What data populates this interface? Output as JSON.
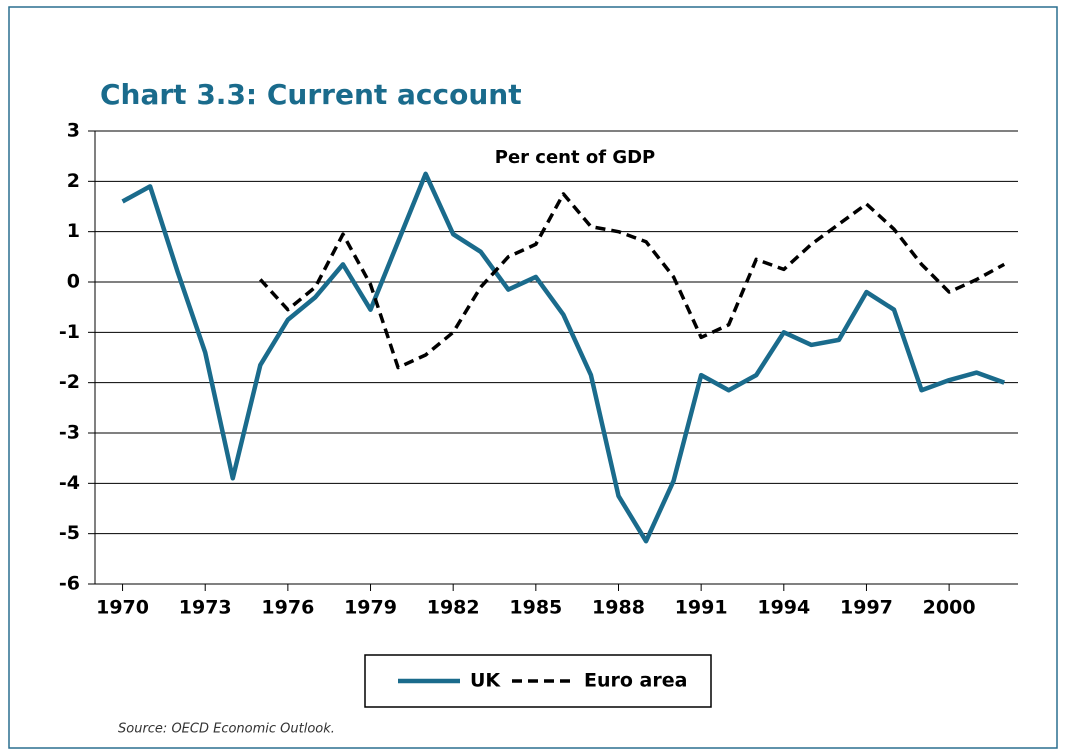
{
  "chart_data": {
    "type": "line",
    "title": "Chart 3.3: Current account",
    "subtitle": "Per cent of GDP",
    "source": "Source: OECD Economic Outlook.",
    "x": [
      1970,
      1971,
      1972,
      1973,
      1974,
      1975,
      1976,
      1977,
      1978,
      1979,
      1980,
      1981,
      1982,
      1983,
      1984,
      1985,
      1986,
      1987,
      1988,
      1989,
      1990,
      1991,
      1992,
      1993,
      1994,
      1995,
      1996,
      1997,
      1998,
      1999,
      2000,
      2001,
      2002
    ],
    "series": [
      {
        "name": "UK",
        "color": "#1a6b8c",
        "style": "solid",
        "values": [
          1.6,
          1.9,
          0.2,
          -1.4,
          -3.9,
          -1.65,
          -0.75,
          -0.3,
          0.35,
          -0.55,
          0.8,
          2.15,
          0.95,
          0.6,
          -0.15,
          0.1,
          -0.65,
          -1.85,
          -4.25,
          -5.15,
          -3.95,
          -1.85,
          -2.15,
          -1.85,
          -1.0,
          -1.25,
          -1.15,
          -0.2,
          -0.55,
          -2.15,
          -1.95,
          -1.8,
          -2.0
        ]
      },
      {
        "name": "Euro area",
        "color": "#000000",
        "style": "dashed",
        "values": [
          null,
          null,
          null,
          null,
          null,
          0.05,
          -0.55,
          -0.1,
          0.95,
          -0.05,
          -1.7,
          -1.45,
          -1.0,
          -0.1,
          0.5,
          0.75,
          1.75,
          1.1,
          1.0,
          0.8,
          0.1,
          -1.1,
          -0.85,
          0.45,
          0.25,
          0.75,
          1.15,
          1.55,
          1.05,
          0.35,
          -0.2,
          0.05,
          0.35
        ]
      }
    ],
    "xlim": [
      1969,
      2002.5
    ],
    "xticks": [
      1970,
      1973,
      1976,
      1979,
      1982,
      1985,
      1988,
      1991,
      1994,
      1997,
      2000
    ],
    "ylim": [
      -6,
      3
    ],
    "yticks": [
      -6,
      -5,
      -4,
      -3,
      -2,
      -1,
      0,
      1,
      2,
      3
    ],
    "grid": true,
    "legend": "bottom"
  }
}
